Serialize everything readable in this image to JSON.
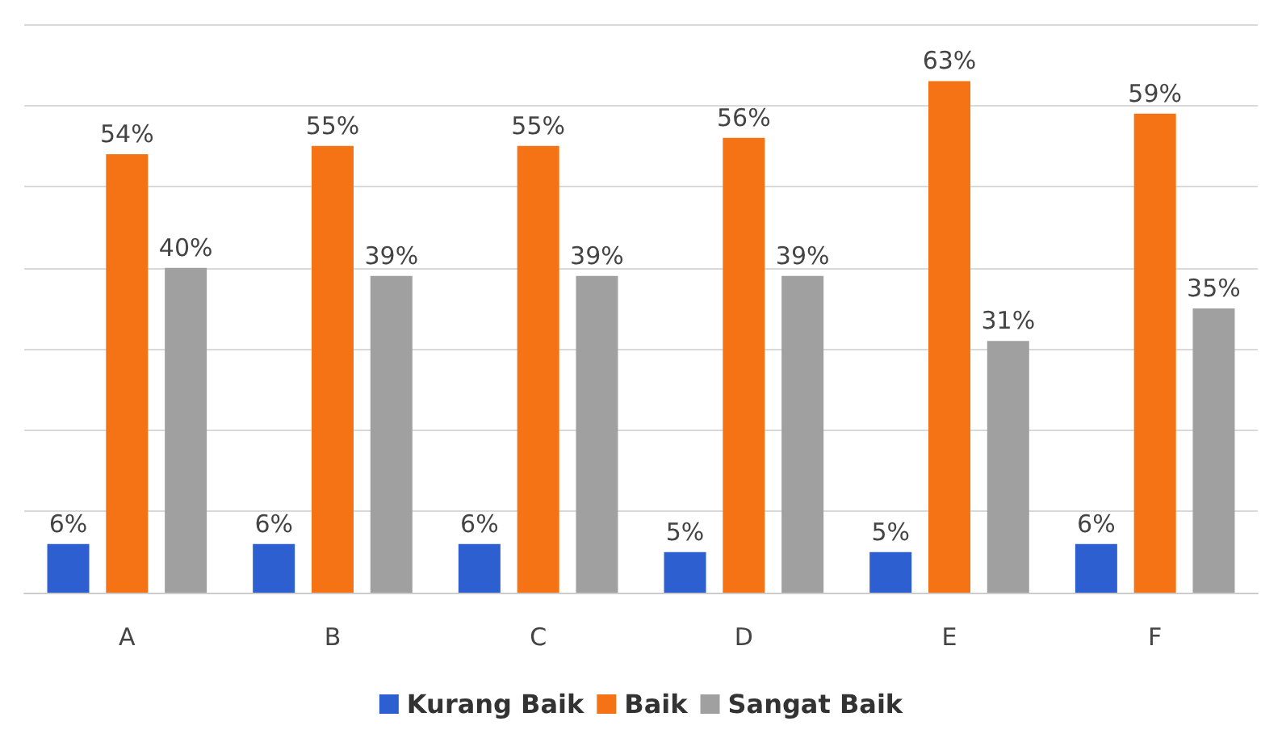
{
  "chart_data": {
    "type": "bar",
    "categories": [
      "A",
      "B",
      "C",
      "D",
      "E",
      "F"
    ],
    "series": [
      {
        "name": "Kurang Baik",
        "color": "#2e5fd0",
        "values": [
          6,
          6,
          6,
          5,
          5,
          6
        ],
        "value_labels": [
          "6%",
          "6%",
          "6%",
          "5%",
          "5%",
          "6%"
        ]
      },
      {
        "name": "Baik",
        "color": "#f57314",
        "values": [
          54,
          55,
          55,
          56,
          63,
          59
        ],
        "value_labels": [
          "54%",
          "55%",
          "55%",
          "56%",
          "63%",
          "59%"
        ]
      },
      {
        "name": "Sangat Baik",
        "color": "#a0a0a0",
        "values": [
          40,
          39,
          39,
          39,
          31,
          35
        ],
        "value_labels": [
          "40%",
          "39%",
          "39%",
          "39%",
          "31%",
          "35%"
        ]
      }
    ],
    "ylim": [
      0,
      70
    ],
    "yticks": [
      {
        "value": 0,
        "label": null
      },
      {
        "value": 10,
        "label": null
      },
      {
        "value": 20,
        "label": null
      },
      {
        "value": 30,
        "label": null
      },
      {
        "value": 40,
        "label": null
      },
      {
        "value": 50,
        "label": null
      },
      {
        "value": 60,
        "label": null
      },
      {
        "value": 70,
        "label": null
      }
    ],
    "tick_labels": "x",
    "grid": "y",
    "legend": "bottom"
  }
}
